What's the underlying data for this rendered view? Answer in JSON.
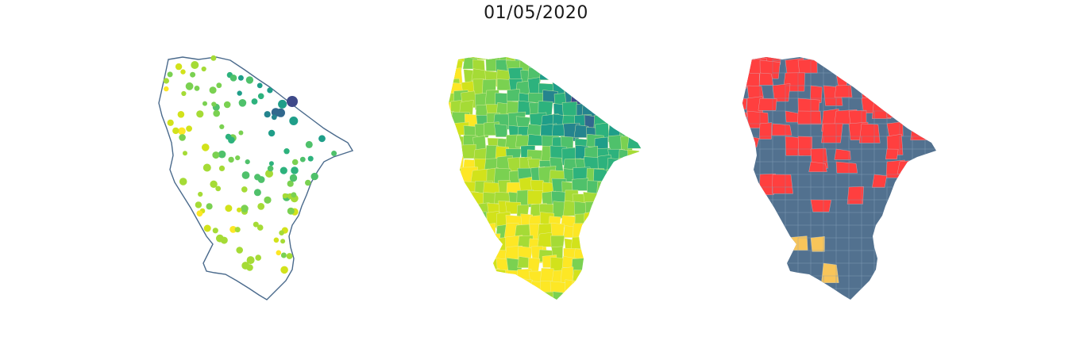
{
  "title": "01/05/2020",
  "palette": {
    "viridis": [
      "#fde725",
      "#d2e21b",
      "#a5db36",
      "#7ad151",
      "#4fc16b",
      "#2db27d",
      "#1f9e89",
      "#25848e",
      "#31688e",
      "#3e4989",
      "#440154"
    ],
    "outline": "#4a6a8c",
    "categorical": {
      "base": "#52718f",
      "red": "#ff3f3f",
      "yellow": "#f8c55a",
      "orange": "#ff9f1c"
    }
  },
  "panels": [
    {
      "id": "points",
      "kind": "proportional-symbols"
    },
    {
      "id": "choropleth",
      "kind": "choropleth"
    },
    {
      "id": "categorical",
      "kind": "categorical"
    }
  ]
}
